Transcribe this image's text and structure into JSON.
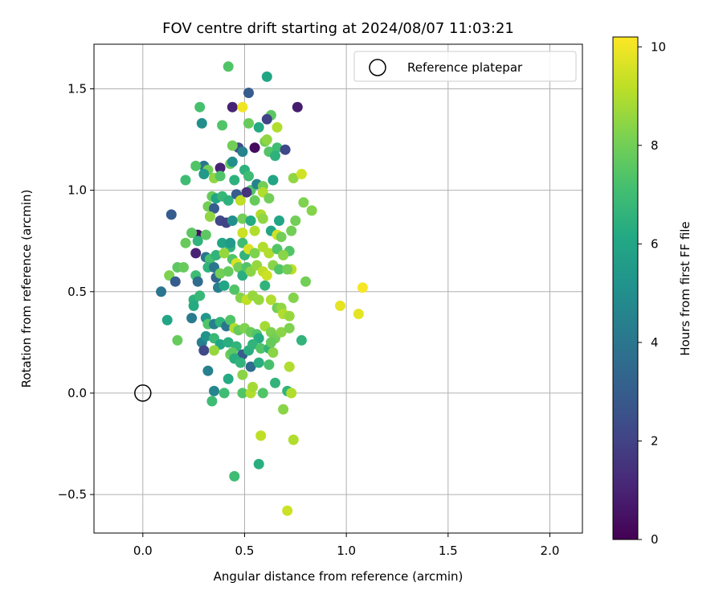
{
  "chart_data": {
    "type": "scatter",
    "title": "FOV centre drift starting at 2024/08/07 11:03:21",
    "xlabel": "Angular distance from reference (arcmin)",
    "ylabel": "Rotation from reference (arcmin)",
    "xlim": [
      -0.24,
      2.16
    ],
    "ylim": [
      -0.69,
      1.72
    ],
    "xticks": [
      0.0,
      0.5,
      1.0,
      1.5,
      2.0
    ],
    "xtick_labels": [
      "0.0",
      "0.5",
      "1.0",
      "1.5",
      "2.0"
    ],
    "yticks": [
      -0.5,
      0.0,
      0.5,
      1.0,
      1.5
    ],
    "ytick_labels": [
      "−0.5",
      "0.0",
      "0.5",
      "1.0",
      "1.5"
    ],
    "grid": true,
    "legend": {
      "placement": "top-right",
      "entries": [
        "Reference platepar"
      ]
    },
    "reference": {
      "label": "Reference platepar",
      "x": 0.0,
      "y": 0.0
    },
    "colorbar": {
      "label": "Hours from first FF file",
      "range": [
        0,
        10.2
      ],
      "ticks": [
        0,
        2,
        4,
        6,
        8,
        10
      ],
      "tick_labels": [
        "0",
        "2",
        "4",
        "6",
        "8",
        "10"
      ],
      "colormap": "viridis"
    },
    "points": [
      [
        0.42,
        1.61,
        7.4
      ],
      [
        0.61,
        1.56,
        6.0
      ],
      [
        0.52,
        1.48,
        3.0
      ],
      [
        0.28,
        1.41,
        7.2
      ],
      [
        0.44,
        1.41,
        1.0
      ],
      [
        0.49,
        1.41,
        10.0
      ],
      [
        0.76,
        1.41,
        0.8
      ],
      [
        0.63,
        1.37,
        7.6
      ],
      [
        0.29,
        1.33,
        5.0
      ],
      [
        0.39,
        1.32,
        7.4
      ],
      [
        0.52,
        1.33,
        7.8
      ],
      [
        0.57,
        1.31,
        6.2
      ],
      [
        0.61,
        1.35,
        2.0
      ],
      [
        0.66,
        1.31,
        9.0
      ],
      [
        0.47,
        1.21,
        2.4
      ],
      [
        0.44,
        1.22,
        8.0
      ],
      [
        0.49,
        1.19,
        4.5
      ],
      [
        0.55,
        1.21,
        0.3
      ],
      [
        0.6,
        1.24,
        8.0
      ],
      [
        0.62,
        1.19,
        7.4
      ],
      [
        0.66,
        1.21,
        7.0
      ],
      [
        0.7,
        1.2,
        2.2
      ],
      [
        0.3,
        1.12,
        4.0
      ],
      [
        0.26,
        1.12,
        7.4
      ],
      [
        0.32,
        1.1,
        8.0
      ],
      [
        0.38,
        1.11,
        1.0
      ],
      [
        0.43,
        1.13,
        7.8
      ],
      [
        0.44,
        1.14,
        5.0
      ],
      [
        0.5,
        1.1,
        6.5
      ],
      [
        0.52,
        1.07,
        7.0
      ],
      [
        0.3,
        1.08,
        5.5
      ],
      [
        0.35,
        1.06,
        8.5
      ],
      [
        0.21,
        1.05,
        7.0
      ],
      [
        0.38,
        1.07,
        7.4
      ],
      [
        0.45,
        1.05,
        6.5
      ],
      [
        0.53,
        1.0,
        7.4
      ],
      [
        0.56,
        1.03,
        4.5
      ],
      [
        0.59,
        1.02,
        8.0
      ],
      [
        0.64,
        1.05,
        6.0
      ],
      [
        0.65,
        1.17,
        6.5
      ],
      [
        0.61,
        1.25,
        8.5
      ],
      [
        0.74,
        1.06,
        8.5
      ],
      [
        0.78,
        1.08,
        9.5
      ],
      [
        0.14,
        0.88,
        3.0
      ],
      [
        0.34,
        0.97,
        7.8
      ],
      [
        0.36,
        0.96,
        6.0
      ],
      [
        0.39,
        0.97,
        6.8
      ],
      [
        0.32,
        0.92,
        8.0
      ],
      [
        0.35,
        0.91,
        3.0
      ],
      [
        0.42,
        0.95,
        6.5
      ],
      [
        0.46,
        0.98,
        3.0
      ],
      [
        0.48,
        0.95,
        9.2
      ],
      [
        0.51,
        0.99,
        1.5
      ],
      [
        0.55,
        0.95,
        7.8
      ],
      [
        0.59,
        0.99,
        9.0
      ],
      [
        0.62,
        0.96,
        8.0
      ],
      [
        0.33,
        0.87,
        8.5
      ],
      [
        0.38,
        0.85,
        2.2
      ],
      [
        0.41,
        0.84,
        2.0
      ],
      [
        0.44,
        0.85,
        5.0
      ],
      [
        0.49,
        0.86,
        8.0
      ],
      [
        0.53,
        0.85,
        6.2
      ],
      [
        0.58,
        0.88,
        9.0
      ],
      [
        0.59,
        0.86,
        8.5
      ],
      [
        0.67,
        0.85,
        6.0
      ],
      [
        0.75,
        0.85,
        8.0
      ],
      [
        0.79,
        0.94,
        8.2
      ],
      [
        0.83,
        0.9,
        8.3
      ],
      [
        0.27,
        0.78,
        0.5
      ],
      [
        0.24,
        0.79,
        7.6
      ],
      [
        0.21,
        0.74,
        7.8
      ],
      [
        0.27,
        0.75,
        6.6
      ],
      [
        0.31,
        0.78,
        7.6
      ],
      [
        0.39,
        0.74,
        6.0
      ],
      [
        0.43,
        0.72,
        6.5
      ],
      [
        0.43,
        0.74,
        5.5
      ],
      [
        0.49,
        0.79,
        9.4
      ],
      [
        0.49,
        0.74,
        7.0
      ],
      [
        0.55,
        0.8,
        9.0
      ],
      [
        0.63,
        0.8,
        6.0
      ],
      [
        0.66,
        0.78,
        9.5
      ],
      [
        0.68,
        0.77,
        8.0
      ],
      [
        0.73,
        0.8,
        8.0
      ],
      [
        0.72,
        0.7,
        7.4
      ],
      [
        0.26,
        0.69,
        1.0
      ],
      [
        0.31,
        0.67,
        4.0
      ],
      [
        0.33,
        0.66,
        7.2
      ],
      [
        0.36,
        0.68,
        6.6
      ],
      [
        0.4,
        0.69,
        8.6
      ],
      [
        0.44,
        0.66,
        7.4
      ],
      [
        0.46,
        0.64,
        9.6
      ],
      [
        0.5,
        0.68,
        6.6
      ],
      [
        0.52,
        0.71,
        9.6
      ],
      [
        0.55,
        0.69,
        8.2
      ],
      [
        0.59,
        0.72,
        9.0
      ],
      [
        0.62,
        0.69,
        9.0
      ],
      [
        0.66,
        0.71,
        7.4
      ],
      [
        0.69,
        0.68,
        8.4
      ],
      [
        0.73,
        0.61,
        9.2
      ],
      [
        0.17,
        0.62,
        7.6
      ],
      [
        0.13,
        0.58,
        8.2
      ],
      [
        0.2,
        0.62,
        7.8
      ],
      [
        0.26,
        0.58,
        7.0
      ],
      [
        0.27,
        0.55,
        3.6
      ],
      [
        0.16,
        0.55,
        3.0
      ],
      [
        0.32,
        0.62,
        6.6
      ],
      [
        0.35,
        0.62,
        4.0
      ],
      [
        0.36,
        0.57,
        3.4
      ],
      [
        0.38,
        0.59,
        8.0
      ],
      [
        0.42,
        0.6,
        7.8
      ],
      [
        0.47,
        0.62,
        8.0
      ],
      [
        0.49,
        0.58,
        6.4
      ],
      [
        0.51,
        0.62,
        7.4
      ],
      [
        0.53,
        0.6,
        8.4
      ],
      [
        0.56,
        0.63,
        8.6
      ],
      [
        0.59,
        0.6,
        9.2
      ],
      [
        0.61,
        0.58,
        9.4
      ],
      [
        0.64,
        0.63,
        8.4
      ],
      [
        0.67,
        0.61,
        7.4
      ],
      [
        0.71,
        0.61,
        8.0
      ],
      [
        0.09,
        0.5,
        4.0
      ],
      [
        0.25,
        0.46,
        6.5
      ],
      [
        0.25,
        0.43,
        6.2
      ],
      [
        0.28,
        0.48,
        6.8
      ],
      [
        0.37,
        0.52,
        4.4
      ],
      [
        0.4,
        0.53,
        6.0
      ],
      [
        0.45,
        0.51,
        7.4
      ],
      [
        0.48,
        0.47,
        8.3
      ],
      [
        0.51,
        0.46,
        9.2
      ],
      [
        0.54,
        0.48,
        8.6
      ],
      [
        0.57,
        0.46,
        8.6
      ],
      [
        0.6,
        0.53,
        6.6
      ],
      [
        0.63,
        0.46,
        9.0
      ],
      [
        0.66,
        0.42,
        8.0
      ],
      [
        0.68,
        0.42,
        8.5
      ],
      [
        0.69,
        0.39,
        9.0
      ],
      [
        0.72,
        0.38,
        8.6
      ],
      [
        0.74,
        0.47,
        8.3
      ],
      [
        0.8,
        0.55,
        8.0
      ],
      [
        0.97,
        0.43,
        9.8
      ],
      [
        1.06,
        0.39,
        9.8
      ],
      [
        1.08,
        0.52,
        10.1
      ],
      [
        0.12,
        0.36,
        6.0
      ],
      [
        0.24,
        0.37,
        4.2
      ],
      [
        0.31,
        0.37,
        5.4
      ],
      [
        0.32,
        0.34,
        7.4
      ],
      [
        0.35,
        0.34,
        4.4
      ],
      [
        0.38,
        0.35,
        6.6
      ],
      [
        0.41,
        0.33,
        4.0
      ],
      [
        0.43,
        0.36,
        7.4
      ],
      [
        0.45,
        0.32,
        9.0
      ],
      [
        0.47,
        0.31,
        7.8
      ],
      [
        0.5,
        0.32,
        8.2
      ],
      [
        0.53,
        0.3,
        7.8
      ],
      [
        0.56,
        0.29,
        7.4
      ],
      [
        0.57,
        0.27,
        6.2
      ],
      [
        0.6,
        0.33,
        8.8
      ],
      [
        0.63,
        0.3,
        8.2
      ],
      [
        0.65,
        0.27,
        8.0
      ],
      [
        0.68,
        0.3,
        8.4
      ],
      [
        0.72,
        0.32,
        8.2
      ],
      [
        0.78,
        0.26,
        6.6
      ],
      [
        0.17,
        0.26,
        7.8
      ],
      [
        0.29,
        0.25,
        4.4
      ],
      [
        0.31,
        0.28,
        5.2
      ],
      [
        0.35,
        0.27,
        6.8
      ],
      [
        0.38,
        0.24,
        6.0
      ],
      [
        0.42,
        0.25,
        6.4
      ],
      [
        0.43,
        0.19,
        8.0
      ],
      [
        0.46,
        0.23,
        6.6
      ],
      [
        0.49,
        0.19,
        3.0
      ],
      [
        0.52,
        0.21,
        6.4
      ],
      [
        0.54,
        0.24,
        6.6
      ],
      [
        0.58,
        0.22,
        7.4
      ],
      [
        0.62,
        0.22,
        6.6
      ],
      [
        0.63,
        0.25,
        7.8
      ],
      [
        0.64,
        0.2,
        8.4
      ],
      [
        0.3,
        0.21,
        2.2
      ],
      [
        0.35,
        0.21,
        8.6
      ],
      [
        0.44,
        0.2,
        7.6
      ],
      [
        0.45,
        0.17,
        6.4
      ],
      [
        0.48,
        0.15,
        6.6
      ],
      [
        0.53,
        0.13,
        3.6
      ],
      [
        0.57,
        0.15,
        6.4
      ],
      [
        0.62,
        0.14,
        7.2
      ],
      [
        0.72,
        0.13,
        9.0
      ],
      [
        0.32,
        0.11,
        4.4
      ],
      [
        0.49,
        0.09,
        8.4
      ],
      [
        0.42,
        0.07,
        6.2
      ],
      [
        0.65,
        0.05,
        6.6
      ],
      [
        0.35,
        0.01,
        4.6
      ],
      [
        0.4,
        -0.0,
        7.0
      ],
      [
        0.49,
        0.0,
        7.4
      ],
      [
        0.53,
        0.0,
        9.0
      ],
      [
        0.54,
        0.03,
        8.8
      ],
      [
        0.59,
        -0.0,
        7.4
      ],
      [
        0.71,
        0.01,
        6.6
      ],
      [
        0.73,
        0.0,
        9.0
      ],
      [
        0.69,
        -0.08,
        8.4
      ],
      [
        0.34,
        -0.04,
        7.0
      ],
      [
        0.58,
        -0.21,
        9.2
      ],
      [
        0.74,
        -0.23,
        9.0
      ],
      [
        0.57,
        -0.35,
        6.4
      ],
      [
        0.45,
        -0.41,
        7.0
      ],
      [
        0.71,
        -0.58,
        9.4
      ]
    ]
  }
}
